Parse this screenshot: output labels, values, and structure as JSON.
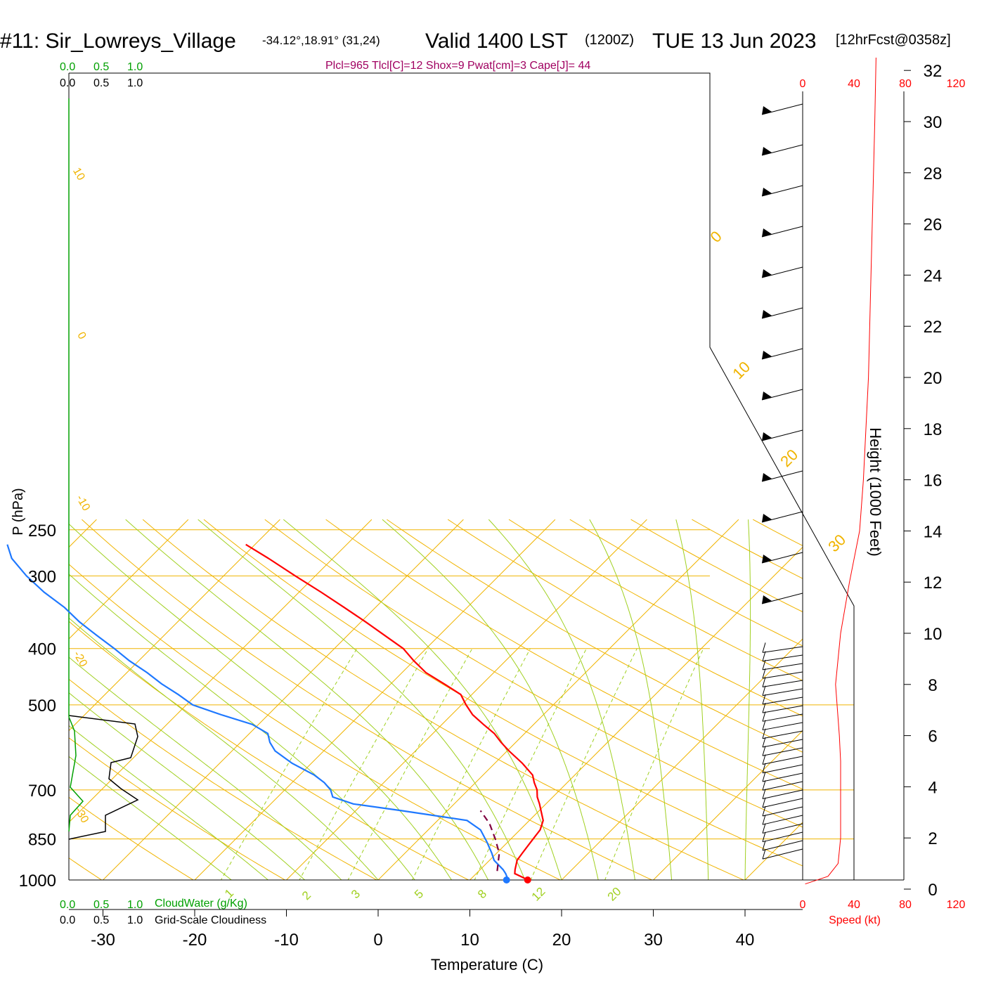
{
  "header": {
    "station": "#11: Sir_Lowreys_Village",
    "coords": "-34.12°,18.91° (31,24)",
    "valid": "Valid 1400 LST",
    "utc": "(1200Z)",
    "date": "TUE 13 Jun 2023",
    "forecast": "[12hrFcst@0358z]"
  },
  "indices": "Plcl=965 Tlcl[C]=12 Shox=9 Pwat[cm]=3 Cape[J]= 44",
  "cloud_scale": {
    "cloudwater_ticks": [
      "0.0",
      "0.5",
      "1.0"
    ],
    "cloudiness_ticks": [
      "0.0",
      "0.5",
      "1.0"
    ],
    "cloudwater_label": "CloudWater (g/Kg)",
    "cloudiness_label": "Grid-Scale Cloudiness"
  },
  "speed_axis": {
    "ticks": [
      "0",
      "40",
      "80",
      "120"
    ],
    "label": "Speed (kt)"
  },
  "height_axis": {
    "label": "Height (1000 Feet)"
  },
  "colors": {
    "temperature": "#ff0000",
    "dewpoint": "#1e78ff",
    "parcel": "#800040",
    "isotherm": "#f0b400",
    "dry_adiabat": "#f0b400",
    "moist_adiabat": "#a0d020",
    "mixing_ratio": "#a0d020",
    "cloudwater": "#00a000",
    "header_green": "#00a000",
    "indices": "#a00060",
    "speed": "#ff0000"
  },
  "chart_data": {
    "type": "line",
    "chart_subtype": "skew-T log-P sounding",
    "xlabel": "Temperature (C)",
    "ylabel": "P (hPa)",
    "ylim_hpa": [
      1000,
      250
    ],
    "y_scale": "log",
    "x_ticks": [
      -30,
      -20,
      -10,
      0,
      10,
      20,
      30,
      40
    ],
    "y_ticks": [
      250,
      300,
      400,
      500,
      700,
      850,
      1000
    ],
    "isotherm_labels": [
      "0",
      "10",
      "20",
      "30"
    ],
    "dry_adiabat_labels": [
      "10",
      "0",
      "-10",
      "-20",
      "-30"
    ],
    "mixing_ratio_labels": [
      "1",
      "2",
      "3",
      "5",
      "8",
      "12",
      "20"
    ],
    "series": [
      {
        "id": "temperature",
        "pressure": [
          1000,
          990,
          975,
          960,
          925,
          900,
          860,
          820,
          790,
          760,
          740,
          720,
          700,
          680,
          660,
          630,
          600,
          580,
          560,
          540,
          520,
          500,
          480,
          460,
          440,
          420,
          400,
          380,
          360,
          340,
          320,
          300,
          280,
          265
        ],
        "temperature": [
          16.3,
          15.5,
          14.2,
          13.8,
          13.0,
          12.8,
          12.5,
          12.2,
          11.5,
          10.2,
          9.3,
          8.3,
          7.5,
          6.4,
          5.4,
          3.0,
          0.2,
          -1.6,
          -3.3,
          -5.5,
          -7.7,
          -9.5,
          -11.2,
          -14.2,
          -17.4,
          -20.0,
          -22.5,
          -25.9,
          -29.5,
          -33.4,
          -37.6,
          -42.2,
          -47.0,
          -51.0
        ]
      },
      {
        "id": "dewpoint",
        "pressure": [
          1000,
          990,
          975,
          960,
          925,
          900,
          860,
          820,
          790,
          760,
          740,
          720,
          700,
          680,
          660,
          630,
          600,
          580,
          560,
          540,
          520,
          500,
          480,
          460,
          440,
          420,
          400,
          380,
          360,
          340,
          320,
          300,
          280,
          265
        ],
        "temperature": [
          14.0,
          13.8,
          13.2,
          12.5,
          10.5,
          9.5,
          7.7,
          5.7,
          3.2,
          -5.0,
          -11.0,
          -14.0,
          -15.0,
          -16.5,
          -18.4,
          -22.1,
          -25.3,
          -26.8,
          -28.0,
          -30.7,
          -35.1,
          -39.3,
          -42.0,
          -45.0,
          -47.8,
          -51.0,
          -54.0,
          -57.3,
          -60.7,
          -63.9,
          -67.8,
          -71.5,
          -75.0,
          -77.0
        ]
      },
      {
        "id": "parcel",
        "pressure": [
          965,
          900,
          850,
          800,
          760
        ],
        "temperature": [
          12.0,
          10.3,
          8.3,
          6.0,
          3.6
        ]
      }
    ],
    "surface_points": [
      {
        "series": "temperature",
        "pressure": 1000,
        "value": 16.3
      },
      {
        "series": "dewpoint",
        "pressure": 1000,
        "value": 14.0
      }
    ],
    "wind_speed_kt_profile": {
      "height_kft": [
        0.2,
        0.5,
        1,
        2,
        3,
        4,
        5,
        6,
        8,
        10,
        12,
        14,
        16,
        18,
        20,
        22,
        24,
        26,
        28,
        30,
        32.5
      ],
      "speed": [
        2,
        20,
        28,
        30,
        30,
        30,
        30,
        29,
        26,
        30,
        37,
        45,
        48,
        50,
        52,
        53,
        54,
        55,
        56,
        57,
        58
      ]
    },
    "height_ticks_kft": [
      0,
      2,
      4,
      6,
      8,
      10,
      12,
      14,
      16,
      18,
      20,
      22,
      24,
      26,
      28,
      30,
      32
    ],
    "speed_xlim_kt": [
      0,
      120
    ]
  }
}
